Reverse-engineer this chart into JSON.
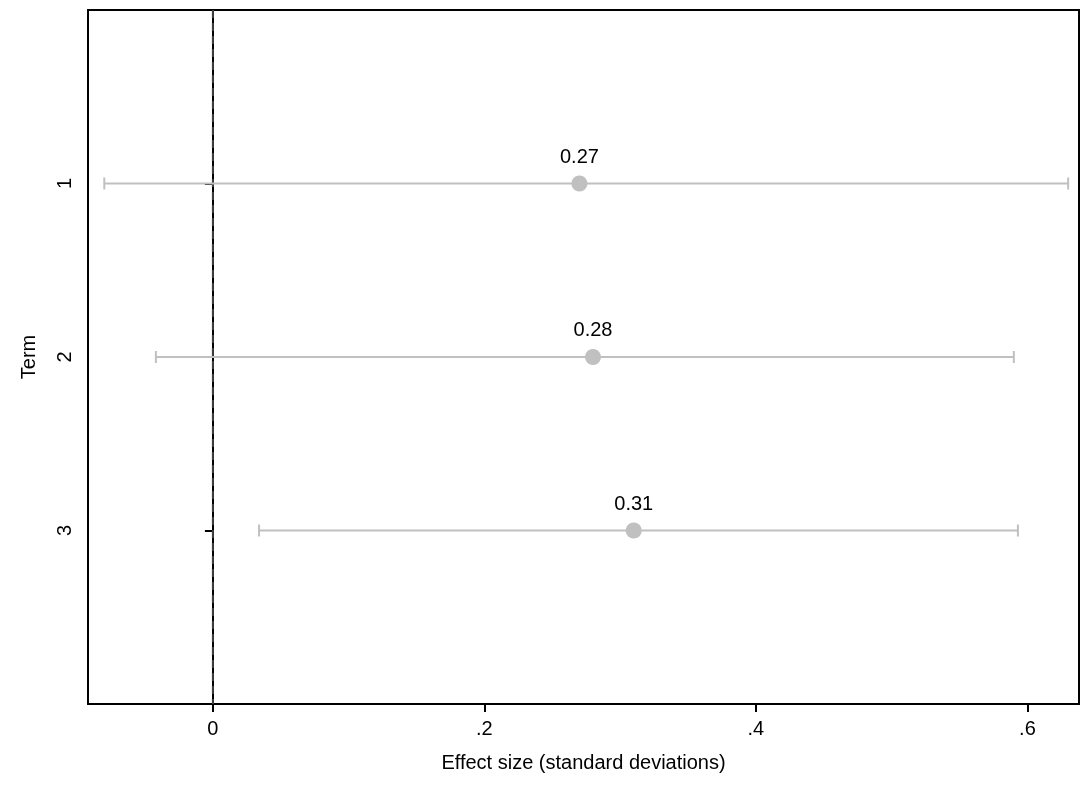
{
  "chart_data": {
    "type": "scatter",
    "orientation": "horizontal",
    "xlabel": "Effect size (standard deviations)",
    "ylabel": "Term",
    "categories": [
      "1",
      "2",
      "3"
    ],
    "values": [
      0.27,
      0.28,
      0.31
    ],
    "errors": [
      [
        -0.08,
        0.63
      ],
      [
        -0.042,
        0.59
      ],
      [
        0.034,
        0.593
      ]
    ],
    "color": "#c0c0c0",
    "xlim": [
      -0.092,
      0.638
    ],
    "xticks": [
      0,
      {
        "value": 0.2,
        "label": ".2"
      },
      {
        "value": 0.4,
        "label": ".4"
      },
      {
        "value": 0.6,
        "label": ".6"
      }
    ],
    "ref_lines": [
      {
        "axis": "x",
        "value": 0,
        "label": null,
        "line_style": "dashed",
        "color": "#404040"
      }
    ],
    "data_labels": true,
    "grid": false,
    "marker": "circle"
  }
}
